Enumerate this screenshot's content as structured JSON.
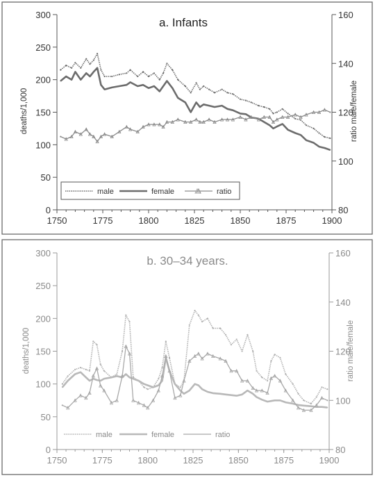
{
  "colors": {
    "panel_a_male": "#6c6c6c",
    "panel_a_female": "#6c6c6c",
    "panel_a_ratio": "#8c8c8c",
    "panel_b_male": "#b0b0b0",
    "panel_b_female": "#b8b8b8",
    "panel_b_ratio": "#a8a8a8"
  },
  "chart_data": [
    {
      "type": "line",
      "title": "a. Infants",
      "xlabel": "",
      "ylabel": "deaths/1,000",
      "y2label": "ratio male/female",
      "xlim": [
        1750,
        1900
      ],
      "ylim": [
        0,
        300
      ],
      "y2lim": [
        80,
        160
      ],
      "xticks": [
        "1750",
        "1775",
        "1800",
        "1825",
        "1850",
        "1875",
        "1900"
      ],
      "yticks": [
        "0",
        "50",
        "100",
        "150",
        "200",
        "250",
        "300"
      ],
      "y2ticks": [
        "80",
        "100",
        "120",
        "140",
        "160"
      ],
      "legend_position": "bottom-left",
      "grid": false,
      "series": [
        {
          "name": "male",
          "axis": "left",
          "x": [
            1752,
            1755,
            1758,
            1760,
            1763,
            1766,
            1768,
            1770,
            1772,
            1774,
            1776,
            1780,
            1784,
            1788,
            1790,
            1794,
            1797,
            1800,
            1803,
            1806,
            1808,
            1810,
            1813,
            1816,
            1820,
            1823,
            1826,
            1828,
            1830,
            1833,
            1836,
            1840,
            1843,
            1846,
            1850,
            1853,
            1856,
            1860,
            1863,
            1866,
            1868,
            1870,
            1873,
            1876,
            1880,
            1883,
            1886,
            1890,
            1893,
            1896,
            1899
          ],
          "y": [
            215,
            222,
            218,
            226,
            218,
            232,
            224,
            230,
            240,
            215,
            205,
            205,
            208,
            210,
            215,
            205,
            212,
            205,
            210,
            200,
            210,
            225,
            215,
            200,
            190,
            180,
            195,
            185,
            190,
            185,
            180,
            185,
            180,
            178,
            170,
            168,
            165,
            160,
            158,
            155,
            148,
            150,
            155,
            148,
            140,
            138,
            130,
            125,
            118,
            112,
            110
          ]
        },
        {
          "name": "female",
          "axis": "left",
          "x": [
            1752,
            1755,
            1758,
            1760,
            1763,
            1766,
            1768,
            1770,
            1772,
            1774,
            1776,
            1780,
            1784,
            1788,
            1790,
            1794,
            1797,
            1800,
            1803,
            1806,
            1808,
            1810,
            1813,
            1816,
            1820,
            1823,
            1826,
            1828,
            1830,
            1833,
            1836,
            1840,
            1843,
            1846,
            1850,
            1853,
            1856,
            1860,
            1863,
            1866,
            1868,
            1870,
            1873,
            1876,
            1880,
            1883,
            1886,
            1890,
            1893,
            1896,
            1899
          ],
          "y": [
            198,
            205,
            200,
            212,
            200,
            210,
            205,
            212,
            218,
            192,
            185,
            188,
            190,
            192,
            196,
            190,
            192,
            187,
            190,
            182,
            190,
            198,
            187,
            172,
            165,
            150,
            165,
            158,
            162,
            160,
            158,
            160,
            155,
            153,
            148,
            147,
            142,
            140,
            135,
            130,
            125,
            128,
            132,
            123,
            118,
            115,
            107,
            103,
            97,
            95,
            92
          ]
        },
        {
          "name": "ratio",
          "axis": "right",
          "x": [
            1752,
            1755,
            1758,
            1760,
            1763,
            1766,
            1768,
            1770,
            1772,
            1774,
            1776,
            1780,
            1784,
            1788,
            1790,
            1794,
            1797,
            1800,
            1803,
            1806,
            1808,
            1810,
            1813,
            1816,
            1820,
            1823,
            1826,
            1828,
            1830,
            1833,
            1836,
            1840,
            1843,
            1846,
            1850,
            1853,
            1856,
            1860,
            1863,
            1866,
            1868,
            1870,
            1873,
            1876,
            1880,
            1883,
            1886,
            1890,
            1893,
            1896,
            1899
          ],
          "y": [
            110,
            109,
            110,
            112,
            111,
            113,
            111,
            110,
            108,
            110,
            111,
            110,
            112,
            114,
            113,
            112,
            114,
            115,
            115,
            115,
            114,
            116,
            116,
            117,
            116,
            116,
            117,
            116,
            116,
            117,
            116,
            117,
            117,
            117,
            118,
            117,
            118,
            117,
            118,
            118,
            116,
            117,
            118,
            118,
            119,
            118,
            119,
            120,
            120,
            121,
            120
          ]
        }
      ]
    },
    {
      "type": "line",
      "title": "b. 30–34 years.",
      "xlabel": "",
      "ylabel": "deaths/1,000",
      "y2label": "ratio male/female",
      "xlim": [
        1750,
        1900
      ],
      "ylim": [
        0,
        300
      ],
      "y2lim": [
        80,
        160
      ],
      "xticks": [
        "1750",
        "1775",
        "1800",
        "1825",
        "1850",
        "1875",
        "1900"
      ],
      "yticks": [
        "0",
        "50",
        "100",
        "150",
        "200",
        "250",
        "300"
      ],
      "y2ticks": [
        "80",
        "100",
        "120",
        "140",
        "160"
      ],
      "legend_position": "bottom-left",
      "grid": false,
      "series": [
        {
          "name": "male",
          "axis": "left",
          "x": [
            1753,
            1756,
            1760,
            1763,
            1766,
            1768,
            1770,
            1772,
            1774,
            1776,
            1780,
            1783,
            1786,
            1788,
            1790,
            1792,
            1795,
            1798,
            1800,
            1803,
            1806,
            1808,
            1810,
            1812,
            1815,
            1818,
            1820,
            1823,
            1826,
            1828,
            1830,
            1833,
            1836,
            1840,
            1843,
            1846,
            1849,
            1852,
            1855,
            1858,
            1860,
            1863,
            1866,
            1868,
            1870,
            1873,
            1876,
            1880,
            1883,
            1886,
            1890,
            1893,
            1896,
            1899
          ],
          "y": [
            100,
            112,
            122,
            125,
            122,
            120,
            165,
            160,
            130,
            120,
            110,
            115,
            150,
            205,
            195,
            110,
            105,
            95,
            92,
            95,
            108,
            125,
            165,
            140,
            100,
            95,
            105,
            190,
            212,
            205,
            195,
            200,
            185,
            185,
            175,
            160,
            168,
            150,
            175,
            150,
            120,
            110,
            105,
            135,
            145,
            140,
            115,
            100,
            85,
            75,
            70,
            80,
            95,
            92
          ]
        },
        {
          "name": "female",
          "axis": "left",
          "x": [
            1753,
            1756,
            1760,
            1763,
            1766,
            1768,
            1770,
            1772,
            1774,
            1776,
            1780,
            1783,
            1786,
            1788,
            1790,
            1792,
            1795,
            1798,
            1800,
            1803,
            1806,
            1808,
            1810,
            1812,
            1815,
            1818,
            1820,
            1823,
            1826,
            1828,
            1830,
            1833,
            1836,
            1840,
            1843,
            1846,
            1849,
            1852,
            1855,
            1858,
            1860,
            1863,
            1866,
            1868,
            1870,
            1873,
            1876,
            1880,
            1883,
            1886,
            1890,
            1893,
            1896,
            1899
          ],
          "y": [
            95,
            105,
            115,
            118,
            110,
            105,
            108,
            106,
            105,
            108,
            110,
            112,
            110,
            115,
            110,
            108,
            105,
            100,
            98,
            95,
            98,
            105,
            140,
            120,
            100,
            90,
            85,
            90,
            100,
            98,
            92,
            88,
            86,
            85,
            84,
            83,
            82,
            84,
            90,
            85,
            80,
            76,
            73,
            74,
            75,
            75,
            72,
            70,
            68,
            67,
            66,
            65,
            65,
            64
          ]
        },
        {
          "name": "ratio",
          "axis": "right",
          "x": [
            1753,
            1756,
            1760,
            1763,
            1766,
            1768,
            1770,
            1772,
            1774,
            1776,
            1780,
            1783,
            1786,
            1788,
            1790,
            1792,
            1795,
            1798,
            1800,
            1803,
            1806,
            1808,
            1810,
            1812,
            1815,
            1818,
            1820,
            1823,
            1826,
            1828,
            1830,
            1833,
            1836,
            1840,
            1843,
            1846,
            1849,
            1852,
            1855,
            1858,
            1860,
            1863,
            1866,
            1868,
            1870,
            1873,
            1876,
            1880,
            1883,
            1886,
            1890,
            1893,
            1896,
            1899
          ],
          "y": [
            98,
            97,
            100,
            102,
            101,
            103,
            110,
            113,
            106,
            104,
            99,
            100,
            110,
            122,
            119,
            100,
            99,
            98,
            97,
            100,
            104,
            110,
            118,
            112,
            101,
            102,
            108,
            116,
            118,
            119,
            117,
            119,
            118,
            117,
            116,
            112,
            112,
            108,
            108,
            105,
            104,
            104,
            103,
            109,
            110,
            108,
            104,
            100,
            97,
            96,
            96,
            98,
            101,
            100
          ]
        }
      ]
    }
  ]
}
